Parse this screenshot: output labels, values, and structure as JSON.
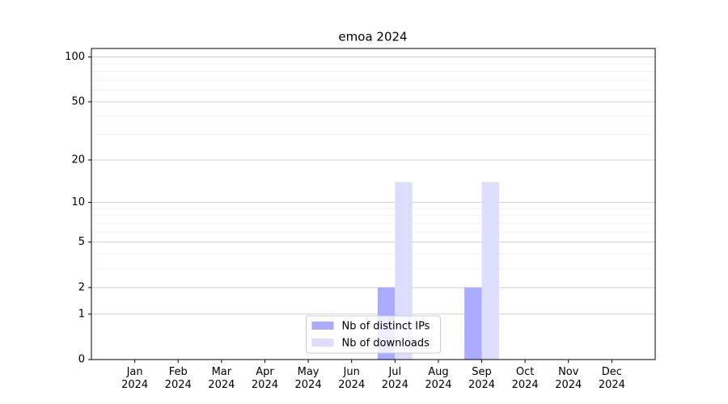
{
  "chart_data": {
    "type": "bar",
    "title": "emoa 2024",
    "categories": [
      "Jan\n2024",
      "Feb\n2024",
      "Mar\n2024",
      "Apr\n2024",
      "May\n2024",
      "Jun\n2024",
      "Jul\n2024",
      "Aug\n2024",
      "Sep\n2024",
      "Oct\n2024",
      "Nov\n2024",
      "Dec\n2024"
    ],
    "series": [
      {
        "name": "Nb of distinct IPs",
        "color": "#aaaaff",
        "values": [
          0,
          0,
          0,
          0,
          0,
          0,
          2,
          0,
          2,
          0,
          0,
          0
        ]
      },
      {
        "name": "Nb of downloads",
        "color": "#ddddff",
        "values": [
          0,
          0,
          0,
          0,
          0,
          0,
          14,
          0,
          14,
          0,
          0,
          0
        ]
      }
    ],
    "yscale": "log1p",
    "ylim": [
      0,
      114
    ],
    "yticks": [
      0,
      1,
      2,
      5,
      10,
      20,
      50,
      100
    ],
    "y_minor_ticks": [
      3,
      4,
      6,
      7,
      8,
      9,
      30,
      40,
      60,
      70,
      80,
      90
    ],
    "grid": true,
    "legend": "lower center"
  }
}
